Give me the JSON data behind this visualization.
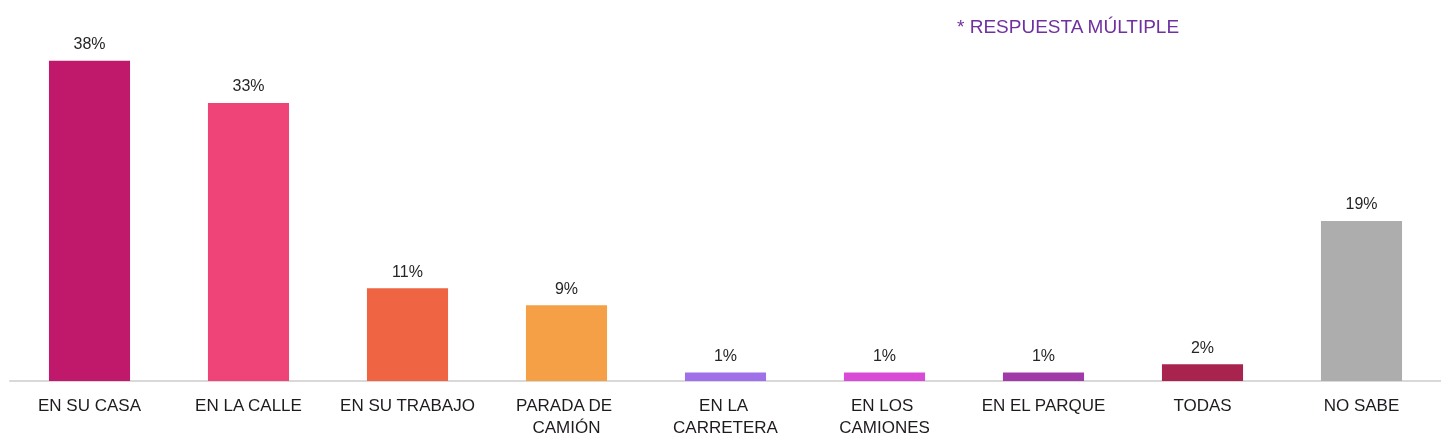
{
  "chart_data": {
    "type": "bar",
    "categories": [
      "EN SU CASA",
      "EN LA CALLE",
      "EN SU TRABAJO",
      "PARADA DE CAMIÓN",
      "EN LA CARRETERA",
      "EN LOS CAMIONES",
      "EN EL PARQUE",
      "TODAS",
      "NO SABE"
    ],
    "values": [
      38,
      33,
      11,
      9,
      1,
      1,
      1,
      2,
      19
    ],
    "colors": [
      "#c0186b",
      "#ef4478",
      "#ef6544",
      "#f5a047",
      "#a070e8",
      "#d94ad6",
      "#a03aa8",
      "#a8244f",
      "#adadad"
    ],
    "value_labels": [
      "38%",
      "33%",
      "11%",
      "9%",
      "1%",
      "1%",
      "1%",
      "2%",
      "19%"
    ],
    "annotations": [
      "* RESPUESTA MÚLTIPLE"
    ]
  }
}
